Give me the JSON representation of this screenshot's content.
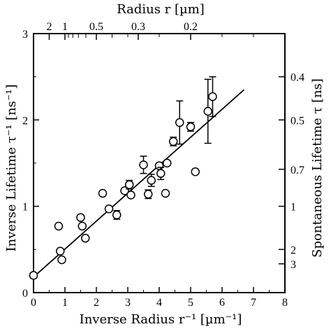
{
  "chart_data": {
    "type": "scatter",
    "xlabel": "Inverse Radius r⁻¹ [µm⁻¹]",
    "ylabel": "Inverse Lifetime τ⁻¹ [ns⁻¹]",
    "top_xlabel": "Radius r [µm]",
    "right_ylabel": "Spontaneous Lifetime τ [ns]",
    "xlim": [
      0,
      8
    ],
    "ylim": [
      0,
      3
    ],
    "x_ticks": [
      0,
      1,
      2,
      3,
      4,
      5,
      6,
      7,
      8
    ],
    "y_ticks": [
      0,
      1,
      2,
      3
    ],
    "top_ticks": [
      {
        "label": "2",
        "value": 2
      },
      {
        "label": "1",
        "value": 1
      },
      {
        "label": "0.5",
        "value": 0.5
      },
      {
        "label": "0.3",
        "value": 0.3
      },
      {
        "label": "0.2",
        "value": 0.2
      }
    ],
    "top_minor_ticks": [
      0.9,
      0.8,
      0.7,
      0.6,
      0.4
    ],
    "right_ticks": [
      {
        "label": "0.4",
        "value": 0.4
      },
      {
        "label": "0.5",
        "value": 0.5
      },
      {
        "label": "0.7",
        "value": 0.7
      },
      {
        "label": "1",
        "value": 1
      },
      {
        "label": "2",
        "value": 2
      },
      {
        "label": "3",
        "value": 3
      }
    ],
    "points": [
      {
        "x": 0.0,
        "y": 0.2,
        "err": 0.03
      },
      {
        "x": 0.8,
        "y": 0.77
      },
      {
        "x": 0.85,
        "y": 0.48
      },
      {
        "x": 0.9,
        "y": 0.38
      },
      {
        "x": 1.5,
        "y": 0.87
      },
      {
        "x": 1.55,
        "y": 0.77
      },
      {
        "x": 1.65,
        "y": 0.63
      },
      {
        "x": 2.2,
        "y": 1.15
      },
      {
        "x": 2.4,
        "y": 0.97
      },
      {
        "x": 2.65,
        "y": 0.9,
        "err": 0.05
      },
      {
        "x": 2.9,
        "y": 1.18
      },
      {
        "x": 3.05,
        "y": 1.25,
        "err": 0.05
      },
      {
        "x": 3.1,
        "y": 1.13
      },
      {
        "x": 3.5,
        "y": 1.48,
        "err": 0.1
      },
      {
        "x": 3.65,
        "y": 1.14,
        "err": 0.05
      },
      {
        "x": 3.75,
        "y": 1.3,
        "err": 0.07
      },
      {
        "x": 4.0,
        "y": 1.47
      },
      {
        "x": 4.05,
        "y": 1.38,
        "err": 0.07
      },
      {
        "x": 4.2,
        "y": 1.15
      },
      {
        "x": 4.25,
        "y": 1.5
      },
      {
        "x": 4.45,
        "y": 1.75,
        "err": 0.05
      },
      {
        "x": 4.65,
        "y": 1.97,
        "err": 0.25
      },
      {
        "x": 5.0,
        "y": 1.92,
        "err": 0.05
      },
      {
        "x": 5.15,
        "y": 1.4
      },
      {
        "x": 5.55,
        "y": 2.1,
        "err": 0.37
      },
      {
        "x": 5.7,
        "y": 2.27,
        "err": 0.23
      }
    ],
    "fit_line": {
      "x": [
        0,
        6.7
      ],
      "y": [
        0.18,
        2.35
      ]
    }
  }
}
